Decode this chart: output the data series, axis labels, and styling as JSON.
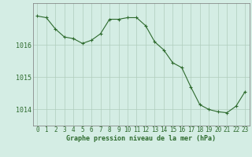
{
  "x": [
    0,
    1,
    2,
    3,
    4,
    5,
    6,
    7,
    8,
    9,
    10,
    11,
    12,
    13,
    14,
    15,
    16,
    17,
    18,
    19,
    20,
    21,
    22,
    23
  ],
  "y": [
    1016.9,
    1016.85,
    1016.5,
    1016.25,
    1016.2,
    1016.05,
    1016.15,
    1016.35,
    1016.8,
    1016.8,
    1016.85,
    1016.85,
    1016.6,
    1016.1,
    1015.85,
    1015.45,
    1015.3,
    1014.7,
    1014.15,
    1014.0,
    1013.93,
    1013.9,
    1014.1,
    1014.55
  ],
  "ylim": [
    1013.5,
    1017.3
  ],
  "yticks": [
    1014,
    1015,
    1016
  ],
  "xticks": [
    0,
    1,
    2,
    3,
    4,
    5,
    6,
    7,
    8,
    9,
    10,
    11,
    12,
    13,
    14,
    15,
    16,
    17,
    18,
    19,
    20,
    21,
    22,
    23
  ],
  "line_color": "#2d6a2d",
  "marker_color": "#2d6a2d",
  "bg_color": "#d4ede4",
  "grid_color": "#b0ccbc",
  "xlabel": "Graphe pression niveau de la mer (hPa)",
  "xlabel_fontsize": 6.0,
  "tick_fontsize": 5.5,
  "ytick_fontsize": 6.0,
  "figsize": [
    3.2,
    2.0
  ],
  "dpi": 100
}
